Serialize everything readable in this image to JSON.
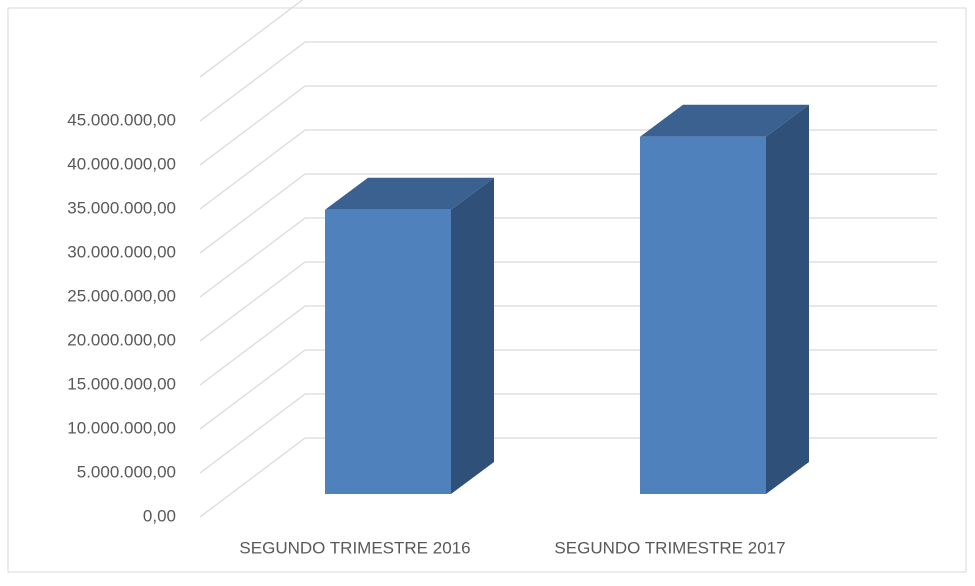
{
  "chart_data": {
    "type": "bar3d",
    "categories": [
      "SEGUNDO TRIMESTRE 2016",
      "SEGUNDO TRIMESTRE 2017"
    ],
    "values": [
      32300000,
      40600000
    ],
    "color": "#4f81bd",
    "ylim": [
      0,
      45000000
    ],
    "yticks": [
      {
        "value": 0,
        "label": "0,00"
      },
      {
        "value": 5000000,
        "label": "5.000.000,00"
      },
      {
        "value": 10000000,
        "label": "10.000.000,00"
      },
      {
        "value": 15000000,
        "label": "15.000.000,00"
      },
      {
        "value": 20000000,
        "label": "20.000.000,00"
      },
      {
        "value": 25000000,
        "label": "25.000.000,00"
      },
      {
        "value": 30000000,
        "label": "30.000.000,00"
      },
      {
        "value": 35000000,
        "label": "35.000.000,00"
      },
      {
        "value": 40000000,
        "label": "40.000.000,00"
      },
      {
        "value": 45000000,
        "label": "45.000.000,00"
      }
    ],
    "grid": true
  }
}
